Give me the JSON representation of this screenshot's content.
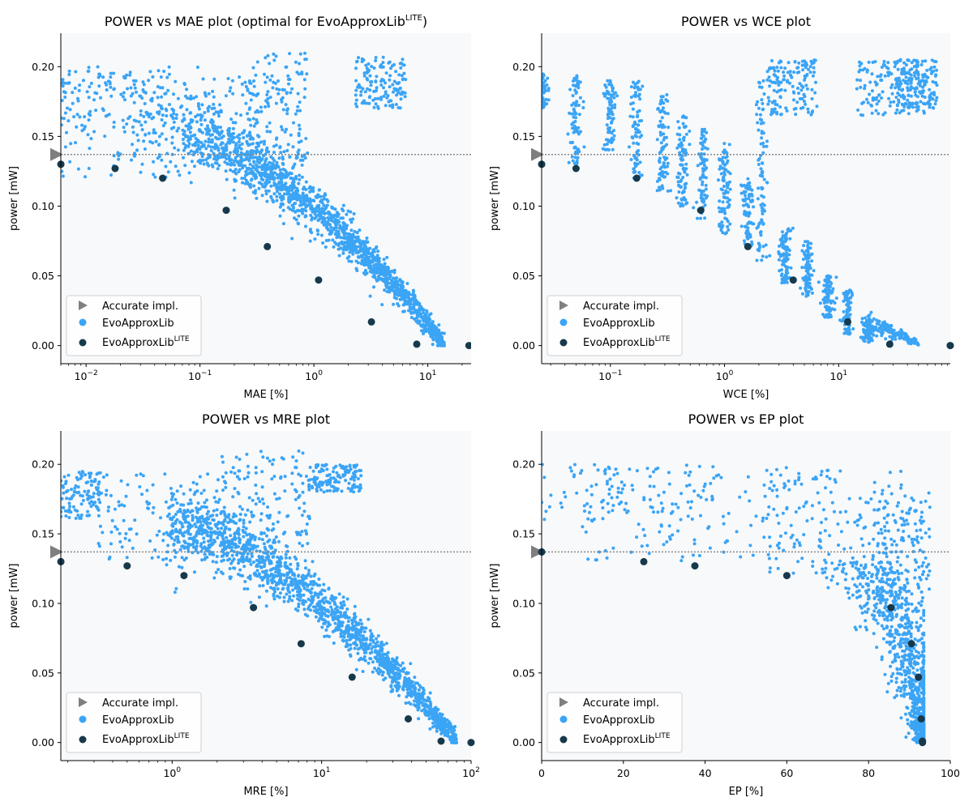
{
  "colors": {
    "evo": "#3ba4f5",
    "lite": "#17394b",
    "accurate": "#7f7f7f",
    "plot_bg": "#f7f9fb"
  },
  "legend": {
    "accurate": "Accurate impl.",
    "evo": "EvoApproxLib",
    "lite_base": "EvoApproxLib",
    "lite_sup": "LITE"
  },
  "chart_data": [
    {
      "type": "scatter",
      "title": "POWER vs MAE plot (optimal for EvoApproxLib",
      "title_sup": "LITE",
      "title_tail": ")",
      "xlabel": "MAE [%]",
      "ylabel": "power [mW]",
      "xscale": "log",
      "xlim": [
        0.006,
        24
      ],
      "ylim": [
        -0.013,
        0.224
      ],
      "xticks": [
        {
          "v": 0.01,
          "base": "10",
          "exp": "−2"
        },
        {
          "v": 0.1,
          "base": "10",
          "exp": "−1"
        },
        {
          "v": 1,
          "base": "10",
          "exp": "0"
        },
        {
          "v": 10,
          "base": "10",
          "exp": "1"
        }
      ],
      "yticks": [
        {
          "v": 0.0,
          "label": "0.00"
        },
        {
          "v": 0.05,
          "label": "0.05"
        },
        {
          "v": 0.1,
          "label": "0.10"
        },
        {
          "v": 0.15,
          "label": "0.15"
        },
        {
          "v": 0.2,
          "label": "0.20"
        }
      ],
      "accurate_power": 0.137,
      "lite": [
        [
          0.006,
          0.13
        ],
        [
          0.018,
          0.127
        ],
        [
          0.047,
          0.12
        ],
        [
          0.17,
          0.097
        ],
        [
          0.39,
          0.071
        ],
        [
          1.1,
          0.047
        ],
        [
          3.2,
          0.017
        ],
        [
          8.0,
          0.001
        ],
        [
          23,
          0.0
        ]
      ],
      "evo_band": {
        "x_min": 0.006,
        "x_max": 14,
        "x_end": 14,
        "y_end": 0.001,
        "x_knee": 0.11,
        "y_knee": 0.15,
        "y_spread": 0.012
      },
      "evo_cloud": [
        [
          0.006,
          0.17,
          0.02,
          0.15,
          0.2
        ],
        [
          0.012,
          0.17,
          0.05,
          0.12,
          0.2
        ],
        [
          0.05,
          0.16,
          0.15,
          0.13,
          0.195
        ],
        [
          0.35,
          0.175,
          0.3,
          0.13,
          0.21
        ],
        [
          3,
          0.19,
          2,
          0.17,
          0.207
        ]
      ]
    },
    {
      "type": "scatter",
      "title": "POWER vs WCE plot",
      "xlabel": "WCE [%]",
      "ylabel": "power [mW]",
      "xscale": "log",
      "xlim": [
        0.025,
        95
      ],
      "ylim": [
        -0.013,
        0.224
      ],
      "xticks": [
        {
          "v": 0.1,
          "base": "10",
          "exp": "−1"
        },
        {
          "v": 1,
          "base": "10",
          "exp": "0"
        },
        {
          "v": 10,
          "base": "10",
          "exp": "1"
        }
      ],
      "yticks": [
        {
          "v": 0.0,
          "label": "0.00"
        },
        {
          "v": 0.05,
          "label": "0.05"
        },
        {
          "v": 0.1,
          "label": "0.10"
        },
        {
          "v": 0.15,
          "label": "0.15"
        },
        {
          "v": 0.2,
          "label": "0.20"
        }
      ],
      "accurate_power": 0.137,
      "lite": [
        [
          0.025,
          0.13
        ],
        [
          0.05,
          0.127
        ],
        [
          0.17,
          0.12
        ],
        [
          0.62,
          0.097
        ],
        [
          1.6,
          0.071
        ],
        [
          4.0,
          0.047
        ],
        [
          12,
          0.017
        ],
        [
          28,
          0.001
        ],
        [
          95,
          0.0
        ]
      ],
      "evo_columns": [
        {
          "x": 0.025,
          "y0": 0.17,
          "y1": 0.195
        },
        {
          "x": 0.05,
          "y0": 0.13,
          "y1": 0.195
        },
        {
          "x": 0.1,
          "y0": 0.14,
          "y1": 0.19
        },
        {
          "x": 0.17,
          "y0": 0.12,
          "y1": 0.19
        },
        {
          "x": 0.29,
          "y0": 0.11,
          "y1": 0.18
        },
        {
          "x": 0.43,
          "y0": 0.1,
          "y1": 0.165
        },
        {
          "x": 0.64,
          "y0": 0.09,
          "y1": 0.155
        },
        {
          "x": 1.0,
          "y0": 0.08,
          "y1": 0.145
        },
        {
          "x": 1.6,
          "y0": 0.07,
          "y1": 0.12
        },
        {
          "x": 2.1,
          "y0": 0.06,
          "y1": 0.19
        },
        {
          "x": 3.4,
          "y0": 0.045,
          "y1": 0.085
        },
        {
          "x": 5.3,
          "y0": 0.035,
          "y1": 0.075
        },
        {
          "x": 8.0,
          "y0": 0.02,
          "y1": 0.05
        },
        {
          "x": 12,
          "y0": 0.008,
          "y1": 0.04
        },
        {
          "x": 18,
          "y0": 0.002,
          "y1": 0.02
        }
      ],
      "evo_cloud": [
        [
          3,
          0.18,
          2,
          0.165,
          0.205
        ],
        [
          20,
          0.185,
          20,
          0.165,
          0.205
        ],
        [
          40,
          0.19,
          15,
          0.17,
          0.205
        ]
      ],
      "evo_band": {
        "x_min": 18,
        "x_max": 50,
        "x_end": 50,
        "y_end": 0.001,
        "x_knee": 18,
        "y_knee": 0.015,
        "y_spread": 0.004
      }
    },
    {
      "type": "scatter",
      "title": "POWER vs MRE plot",
      "xlabel": "MRE [%]",
      "ylabel": "power [mW]",
      "xscale": "log",
      "xlim": [
        0.18,
        100
      ],
      "ylim": [
        -0.013,
        0.224
      ],
      "xticks": [
        {
          "v": 1,
          "base": "10",
          "exp": "0"
        },
        {
          "v": 10,
          "base": "10",
          "exp": "1"
        },
        {
          "v": 100,
          "base": "10",
          "exp": "2"
        }
      ],
      "yticks": [
        {
          "v": 0.0,
          "label": "0.00"
        },
        {
          "v": 0.05,
          "label": "0.05"
        },
        {
          "v": 0.1,
          "label": "0.10"
        },
        {
          "v": 0.15,
          "label": "0.15"
        },
        {
          "v": 0.2,
          "label": "0.20"
        }
      ],
      "accurate_power": 0.137,
      "lite": [
        [
          0.18,
          0.13
        ],
        [
          0.5,
          0.127
        ],
        [
          1.2,
          0.12
        ],
        [
          3.5,
          0.097
        ],
        [
          7.3,
          0.071
        ],
        [
          16,
          0.047
        ],
        [
          38,
          0.017
        ],
        [
          63,
          0.001
        ],
        [
          100,
          0.0
        ]
      ],
      "evo_band": {
        "x_min": 0.18,
        "x_max": 80,
        "x_end": 80,
        "y_end": 0.001,
        "x_knee": 1.5,
        "y_knee": 0.155,
        "y_spread": 0.013
      },
      "evo_cloud": [
        [
          0.18,
          0.18,
          0.05,
          0.16,
          0.195
        ],
        [
          0.5,
          0.17,
          0.9,
          0.13,
          0.195
        ],
        [
          3,
          0.175,
          3,
          0.14,
          0.21
        ],
        [
          10,
          0.19,
          5,
          0.18,
          0.2
        ]
      ]
    },
    {
      "type": "scatter",
      "title": "POWER vs EP plot",
      "xlabel": "EP [%]",
      "ylabel": "power [mW]",
      "xscale": "linear",
      "xlim": [
        0,
        100
      ],
      "ylim": [
        -0.013,
        0.224
      ],
      "xticks": [
        {
          "v": 0,
          "label": "0"
        },
        {
          "v": 20,
          "label": "20"
        },
        {
          "v": 40,
          "label": "40"
        },
        {
          "v": 60,
          "label": "60"
        },
        {
          "v": 80,
          "label": "80"
        },
        {
          "v": 100,
          "label": "100"
        }
      ],
      "yticks": [
        {
          "v": 0.0,
          "label": "0.00"
        },
        {
          "v": 0.05,
          "label": "0.05"
        },
        {
          "v": 0.1,
          "label": "0.10"
        },
        {
          "v": 0.15,
          "label": "0.15"
        },
        {
          "v": 0.2,
          "label": "0.20"
        }
      ],
      "accurate_power": 0.137,
      "lite": [
        [
          0,
          0.137
        ],
        [
          25,
          0.13
        ],
        [
          37.5,
          0.127
        ],
        [
          60,
          0.12
        ],
        [
          85.5,
          0.097
        ],
        [
          90.5,
          0.071
        ],
        [
          92.2,
          0.047
        ],
        [
          92.9,
          0.017
        ],
        [
          93.2,
          0.001
        ],
        [
          93.2,
          0.0
        ]
      ],
      "evo_cloud": [
        [
          0,
          0.18,
          40,
          0.16,
          0.2
        ],
        [
          40,
          0.17,
          30,
          0.13,
          0.2
        ],
        [
          72,
          0.155,
          18,
          0.12,
          0.2
        ],
        [
          88,
          0.13,
          7,
          0.1,
          0.18
        ]
      ],
      "evo_curve": {
        "x_asym": 93.3,
        "y_top": 0.13
      }
    }
  ]
}
